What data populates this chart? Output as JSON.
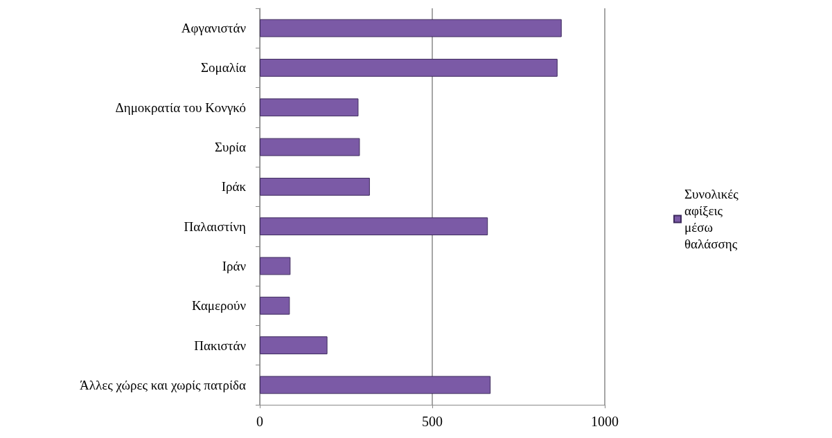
{
  "chart_data": {
    "type": "bar",
    "orientation": "horizontal",
    "categories": [
      "Αφγανιστάν",
      "Σομαλία",
      "Δημοκρατία του Κονγκό",
      "Συρία",
      "Ιράκ",
      "Παλαιστίνη",
      "Ιράν",
      "Καμερούν",
      "Πακιστάν",
      "Άλλες χώρες και χωρίς πατρίδα"
    ],
    "series": [
      {
        "name": "Συνολικές αφίξεις μέσω θαλάσσης",
        "color": "#7b5aa6",
        "values": [
          875,
          863,
          286,
          290,
          319,
          661,
          89,
          87,
          196,
          669
        ]
      }
    ],
    "xlim": [
      0,
      1000
    ],
    "xticks": [
      0,
      500,
      1000
    ],
    "grid": "x",
    "legend": "right"
  }
}
